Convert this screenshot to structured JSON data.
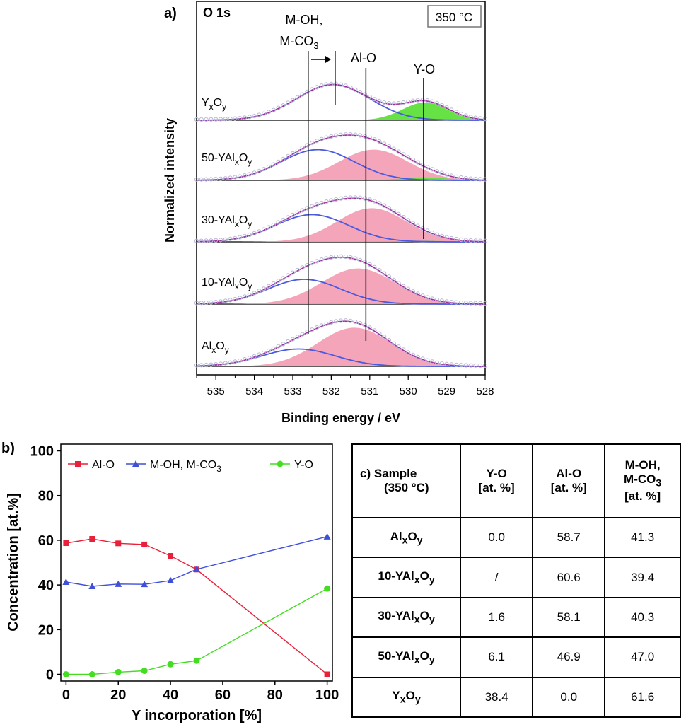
{
  "chart_data": [
    {
      "type": "line",
      "panel": "a)",
      "title": "O 1s",
      "temperature_label": "350 °C",
      "xlabel": "Binding energy / eV",
      "ylabel": "Normalized intensity",
      "xlim": [
        535.5,
        528
      ],
      "x_ticks": [
        535,
        534,
        533,
        532,
        531,
        530,
        529,
        528
      ],
      "reference_lines": [
        {
          "label": "M-OH,\nM-CO3",
          "label_line1": "M-OH,",
          "label_line2": "M-CO",
          "label_sub": "3",
          "x": 532.6,
          "shifted_x": 531.9
        },
        {
          "label": "Al-O",
          "x": 531.1
        },
        {
          "label": "Y-O",
          "x": 529.6
        }
      ],
      "series": [
        {
          "name": "YxOy",
          "label_main": "Y",
          "label_sub1": "x",
          "label_mid": "O",
          "label_sub2": "y",
          "components": [
            {
              "name": "M-OH, M-CO3",
              "center": 531.95,
              "height": 0.72,
              "width": 0.95
            },
            {
              "name": "Y-O",
              "center": 529.55,
              "height": 0.36,
              "width": 0.6
            }
          ]
        },
        {
          "name": "50-YAlxOy",
          "label_main": "50-YAl",
          "label_sub1": "x",
          "label_mid": "O",
          "label_sub2": "y",
          "components": [
            {
              "name": "M-OH, M-CO3",
              "center": 532.35,
              "height": 0.62,
              "width": 0.95
            },
            {
              "name": "Al-O",
              "center": 530.9,
              "height": 0.62,
              "width": 0.9
            },
            {
              "name": "Y-O",
              "center": 529.6,
              "height": 0.06,
              "width": 0.6
            }
          ]
        },
        {
          "name": "30-YAlxOy",
          "label_main": "30-YAl",
          "label_sub1": "x",
          "label_mid": "O",
          "label_sub2": "y",
          "components": [
            {
              "name": "M-OH, M-CO3",
              "center": 532.5,
              "height": 0.55,
              "width": 0.95
            },
            {
              "name": "Al-O",
              "center": 530.95,
              "height": 0.68,
              "width": 0.9
            },
            {
              "name": "Y-O",
              "center": 529.6,
              "height": 0.02,
              "width": 0.6
            }
          ]
        },
        {
          "name": "10-YAlxOy",
          "label_main": "10-YAl",
          "label_sub1": "x",
          "label_mid": "O",
          "label_sub2": "y",
          "components": [
            {
              "name": "M-OH, M-CO3",
              "center": 532.7,
              "height": 0.5,
              "width": 0.95
            },
            {
              "name": "Al-O",
              "center": 531.3,
              "height": 0.72,
              "width": 0.95
            }
          ]
        },
        {
          "name": "AlxOy",
          "label_main": "Al",
          "label_sub1": "x",
          "label_mid": "O",
          "label_sub2": "y",
          "components": [
            {
              "name": "M-OH, M-CO3",
              "center": 532.85,
              "height": 0.35,
              "width": 0.95
            },
            {
              "name": "Al-O",
              "center": 531.4,
              "height": 0.78,
              "width": 0.95
            }
          ]
        }
      ]
    },
    {
      "type": "line",
      "panel": "b)",
      "xlabel": "Y incorporation [%]",
      "ylabel": "Concentration [at.%]",
      "xlim": [
        -2,
        102
      ],
      "ylim": [
        -3,
        103
      ],
      "x_ticks": [
        0,
        20,
        40,
        60,
        80,
        100
      ],
      "y_ticks": [
        0,
        20,
        40,
        60,
        80,
        100
      ],
      "x": [
        0,
        10,
        20,
        30,
        40,
        50,
        100
      ],
      "series": [
        {
          "name": "Al-O",
          "color": "#e8203a",
          "marker": "square",
          "values": [
            58.7,
            60.6,
            58.6,
            58.1,
            53.0,
            46.9,
            0.0
          ]
        },
        {
          "name": "M-OH, M-CO3",
          "legend_main": "M-OH, M-CO",
          "legend_sub": "3",
          "color": "#3f4fd8",
          "marker": "triangle",
          "values": [
            41.3,
            39.4,
            40.4,
            40.3,
            42.0,
            47.0,
            61.6
          ]
        },
        {
          "name": "Y-O",
          "color": "#44dd22",
          "marker": "circle",
          "values": [
            0.0,
            0.0,
            1.0,
            1.6,
            4.5,
            6.1,
            38.4
          ]
        }
      ]
    }
  ],
  "table": {
    "panel": "c)",
    "header": {
      "sample_line1": "Sample",
      "sample_line2": "(350 °C)",
      "col1_line1": "Y-O",
      "col1_line2": "[at. %]",
      "col2_line1": "Al-O",
      "col2_line2": "[at. %]",
      "col3_line1": "M-OH,",
      "col3_line2_main": "M-CO",
      "col3_line2_sub": "3",
      "col3_line3": "[at. %]"
    },
    "rows": [
      {
        "sample_main": "Al",
        "sample_sub1": "x",
        "sample_mid": "O",
        "sample_sub2": "y",
        "y_o": "0.0",
        "al_o": "58.7",
        "m_oh": "41.3"
      },
      {
        "sample_main": "10-YAl",
        "sample_sub1": "x",
        "sample_mid": "O",
        "sample_sub2": "y",
        "y_o": "/",
        "al_o": "60.6",
        "m_oh": "39.4"
      },
      {
        "sample_main": "30-YAl",
        "sample_sub1": "x",
        "sample_mid": "O",
        "sample_sub2": "y",
        "y_o": "1.6",
        "al_o": "58.1",
        "m_oh": "40.3"
      },
      {
        "sample_main": "50-YAl",
        "sample_sub1": "x",
        "sample_mid": "O",
        "sample_sub2": "y",
        "y_o": "6.1",
        "al_o": "46.9",
        "m_oh": "47.0"
      },
      {
        "sample_main": "Y",
        "sample_sub1": "x",
        "sample_mid": "O",
        "sample_sub2": "y",
        "y_o": "38.4",
        "al_o": "0.0",
        "m_oh": "61.6"
      }
    ]
  },
  "colors": {
    "al_o_fill": "#f4a0b6",
    "y_o_fill": "#5fe03a",
    "moh_line": "#4a5ae0",
    "envelope": "#9a2f9a",
    "marker": "#b8b8d8"
  }
}
